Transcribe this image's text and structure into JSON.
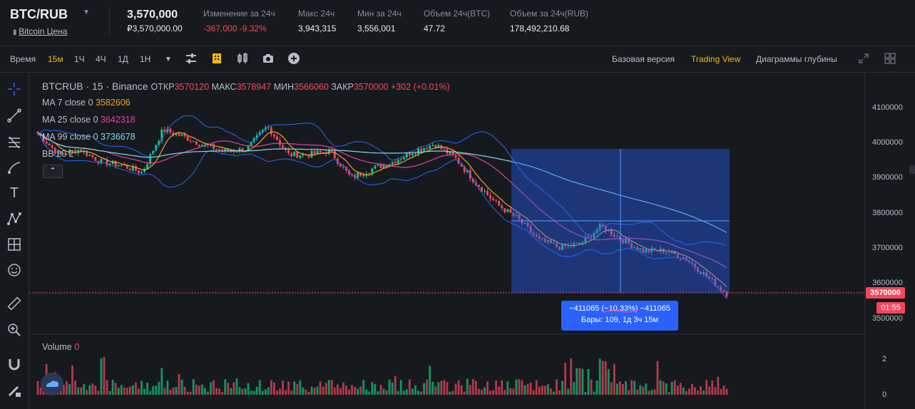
{
  "header": {
    "symbol": "BTC/RUB",
    "subtitle": "Bitcoin Цена",
    "last_price": "3,570,000",
    "last_price_fiat": "₽3,570,000.00",
    "stats": [
      {
        "label": "Изменение за 24ч",
        "value": "-367,000 -9.32%",
        "color": "#f6465d"
      },
      {
        "label": "Макс 24ч",
        "value": "3,943,315"
      },
      {
        "label": "Мин за 24ч",
        "value": "3,556,001"
      },
      {
        "label": "Объем 24ч(BTC)",
        "value": "47.72"
      },
      {
        "label": "Объем за 24ч(RUB)",
        "value": "178,492,210.68"
      }
    ]
  },
  "toolbar": {
    "time_label": "Время",
    "intervals": [
      "15м",
      "1Ч",
      "4Ч",
      "1Д",
      "1Н"
    ],
    "active_interval": "15м",
    "views": [
      "Базовая версия",
      "Trading View",
      "Диаграммы глубины"
    ],
    "active_view": "Trading View"
  },
  "legend": {
    "title": "BTCRUB · 15 · Binance",
    "ohlc": [
      {
        "label": "ОТКР",
        "value": "3570120"
      },
      {
        "label": "МАКС",
        "value": "3578947"
      },
      {
        "label": "МИН",
        "value": "3566060"
      },
      {
        "label": "ЗАКР",
        "value": "3570000"
      }
    ],
    "change": "+302 (+0.01%)",
    "indicators": [
      {
        "label": "MA 7 close 0",
        "value": "3582606",
        "color": "#f0a030"
      },
      {
        "label": "MA 25 close 0",
        "value": "3642318",
        "color": "#e040a0"
      },
      {
        "label": "MA 99 close 0",
        "value": "3736678",
        "color": "#7fd8f0"
      },
      {
        "label": "BB 20 2",
        "value": "",
        "color": "#2962ff"
      }
    ],
    "volume_label": "Volume",
    "volume_value": "0"
  },
  "measure": {
    "line1": "−411065 (−10.33%) −411065",
    "line2": "Бары: 109, 1д 3ч 15м"
  },
  "price_axis": {
    "ticks": [
      "4100000",
      "4000000",
      "3900000",
      "3800000",
      "3700000",
      "3600000",
      "3500000"
    ],
    "current_price": "3570000",
    "countdown": "01:55",
    "volume_ticks": [
      "2",
      "0"
    ]
  },
  "colors": {
    "up": "#0ecb81",
    "down": "#f6465d",
    "accent": "#f0b90b",
    "selection": "#2962ff"
  },
  "chart_data": {
    "type": "candlestick",
    "y_range": [
      3450000,
      4150000
    ],
    "bars_in_selection": 109,
    "price_close_samples": [
      4020000,
      3960000,
      3975000,
      3940000,
      3930000,
      3910000,
      4030000,
      4010000,
      3985000,
      3970000,
      3975000,
      4040000,
      3960000,
      3960000,
      3970000,
      3895000,
      3920000,
      3940000,
      3970000,
      3990000,
      3950000,
      3880000,
      3820000,
      3780000,
      3720000,
      3700000,
      3710000,
      3760000,
      3720000,
      3690000,
      3690000,
      3670000,
      3620000,
      3570000
    ],
    "indicators": [
      "MA 7",
      "MA 25",
      "MA 99",
      "BB 20 2"
    ]
  }
}
